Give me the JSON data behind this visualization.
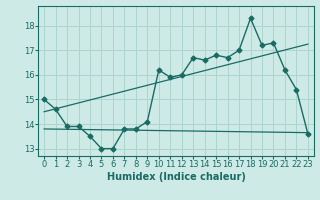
{
  "xlabel": "Humidex (Indice chaleur)",
  "ylabel": "",
  "background_color": "#ceeae6",
  "grid_color": "#aed4cf",
  "line_color": "#1a6b64",
  "xlim": [
    -0.5,
    23.5
  ],
  "ylim": [
    12.7,
    18.8
  ],
  "yticks": [
    13,
    14,
    15,
    16,
    17,
    18
  ],
  "xticks": [
    0,
    1,
    2,
    3,
    4,
    5,
    6,
    7,
    8,
    9,
    10,
    11,
    12,
    13,
    14,
    15,
    16,
    17,
    18,
    19,
    20,
    21,
    22,
    23
  ],
  "curve1_x": [
    0,
    1,
    2,
    3,
    4,
    5,
    6,
    7,
    8,
    9,
    10,
    11,
    12,
    13,
    14,
    15,
    16,
    17,
    18,
    19,
    20,
    21,
    22,
    23
  ],
  "curve1_y": [
    15.0,
    14.6,
    13.9,
    13.9,
    13.5,
    13.0,
    13.0,
    13.8,
    13.8,
    14.1,
    16.2,
    15.9,
    16.0,
    16.7,
    16.6,
    16.8,
    16.7,
    17.0,
    18.3,
    17.2,
    17.3,
    16.2,
    15.4,
    13.6
  ],
  "curve2_x": [
    0,
    23
  ],
  "curve2_y": [
    14.5,
    17.25
  ],
  "curve3_x": [
    0,
    23
  ],
  "curve3_y": [
    13.8,
    13.65
  ],
  "marker": "D",
  "marker_size": 2.5,
  "font_size_label": 7,
  "font_size_tick": 6
}
